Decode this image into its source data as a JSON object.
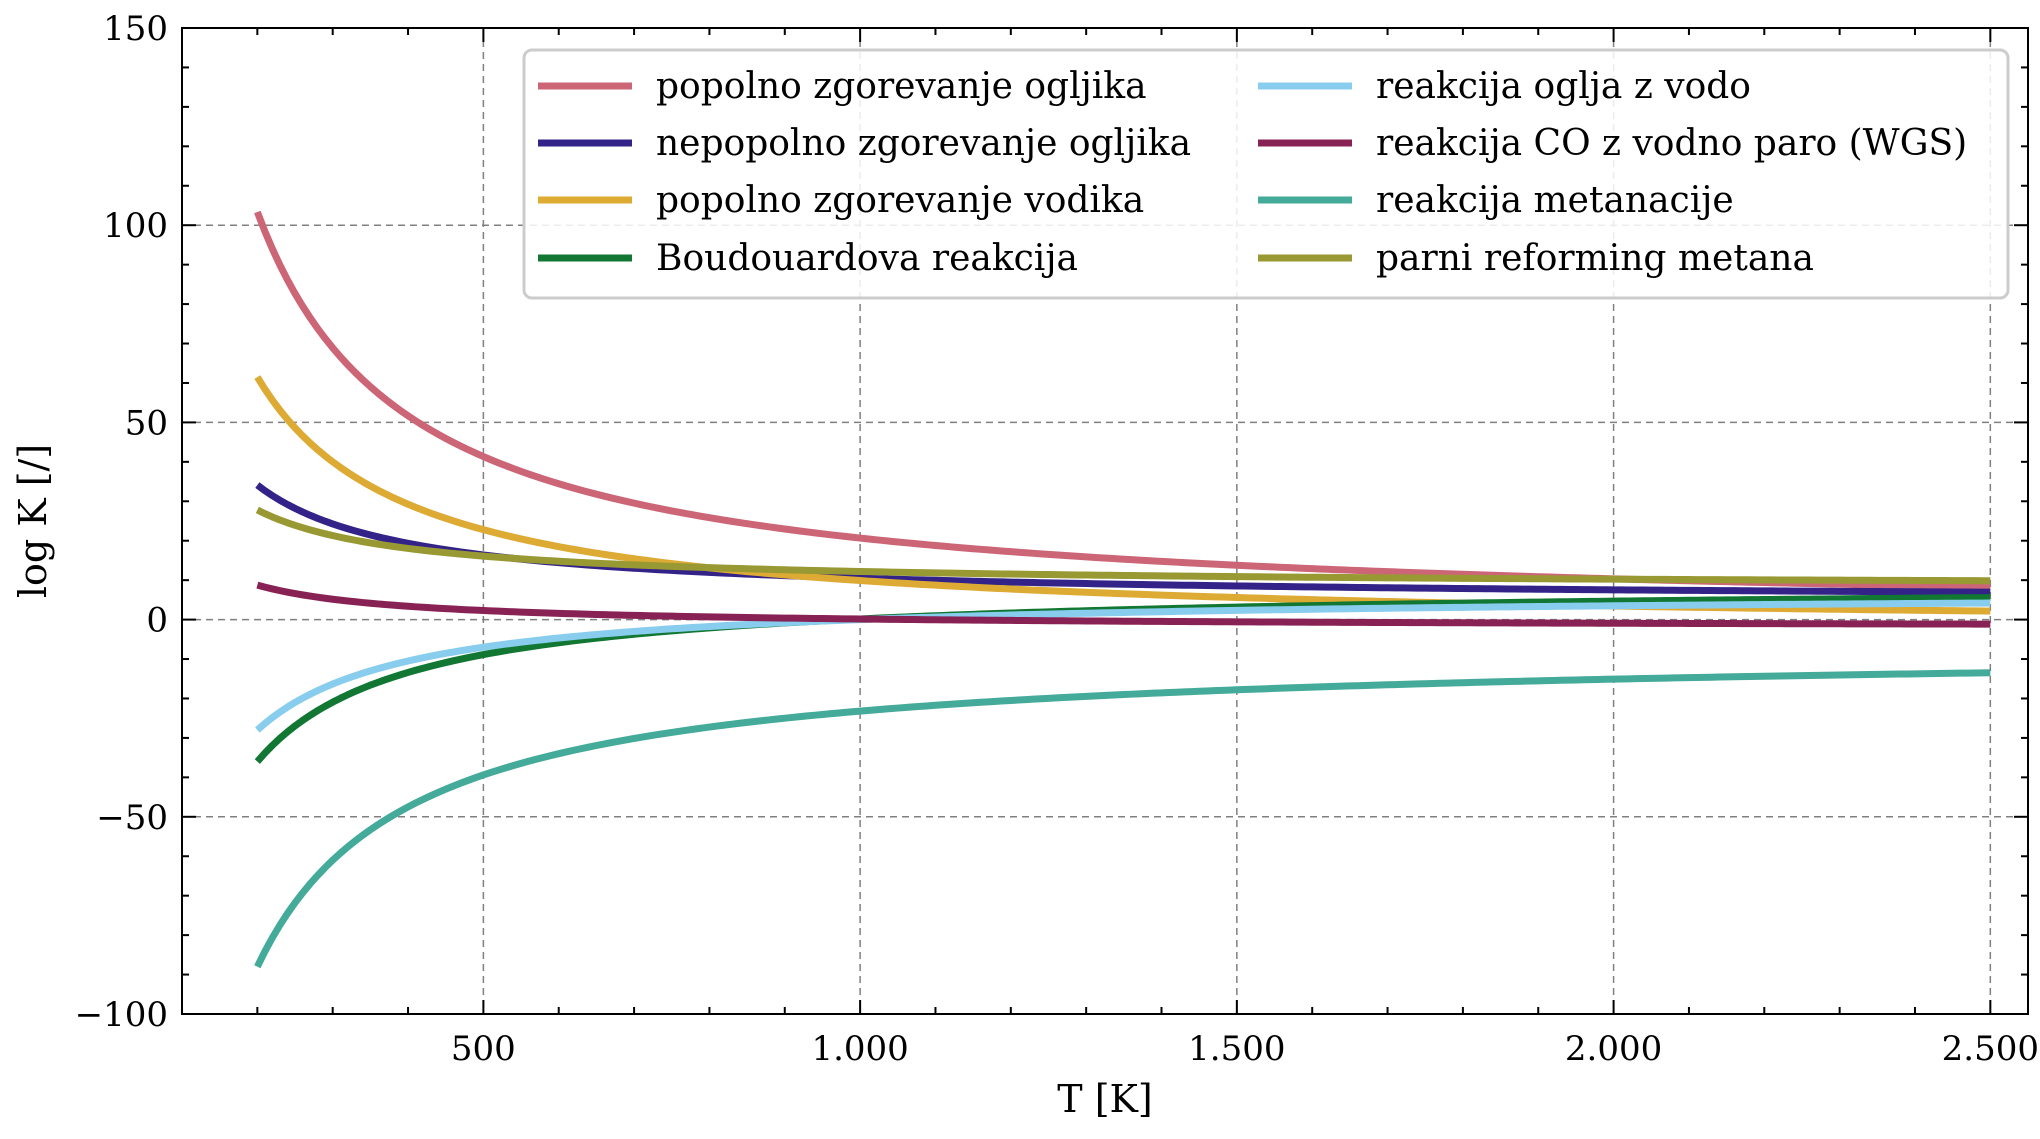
{
  "chart_data": {
    "type": "line",
    "xlabel": "T [K]",
    "ylabel": "log K [/]",
    "xlim": [
      100,
      2550
    ],
    "ylim": [
      -100,
      150
    ],
    "x_ticks": [
      500,
      1000,
      1500,
      2000,
      2500
    ],
    "x_tick_labels": [
      "500",
      "1.000",
      "1.500",
      "2.000",
      "2.500"
    ],
    "y_ticks": [
      -100,
      -50,
      0,
      50,
      100,
      150
    ],
    "y_tick_labels": [
      "−100",
      "−50",
      "0",
      "50",
      "100",
      "150"
    ],
    "grid": true,
    "legend_position": "top-right",
    "series": [
      {
        "name": "popolno zgorevanje ogljika",
        "color": "#CC6677",
        "a": 0.0,
        "b": 20670,
        "x_range": [
          200,
          2500
        ]
      },
      {
        "name": "nepopolno zgorevanje ogljika",
        "color": "#332288",
        "a": 4.6,
        "b": 5900,
        "x_range": [
          200,
          2500
        ]
      },
      {
        "name": "popolno zgorevanje vodika",
        "color": "#DDAA33",
        "a": -3.0,
        "b": 12900,
        "x_range": [
          200,
          2500
        ]
      },
      {
        "name": "Boudouardova reakcija",
        "color": "#117733",
        "a": 9.2,
        "b": -9040,
        "x_range": [
          200,
          2500
        ]
      },
      {
        "name": "reakcija oglja z vodo",
        "color": "#88CCEE",
        "a": 7.0,
        "b": -7000,
        "x_range": [
          200,
          2500
        ]
      },
      {
        "name": "reakcija CO z vodno paro (WGS)",
        "color": "#882255",
        "a": -2.0,
        "b": 2150,
        "x_range": [
          200,
          2500
        ]
      },
      {
        "name": "reakcija metanacije",
        "color": "#44AA99",
        "a": -7.0,
        "b": -16200,
        "x_range": [
          200,
          2500
        ]
      },
      {
        "name": "parni reforming metana",
        "color": "#999933",
        "a": 8.3,
        "b": 3900,
        "x_range": [
          200,
          2500
        ]
      }
    ]
  }
}
